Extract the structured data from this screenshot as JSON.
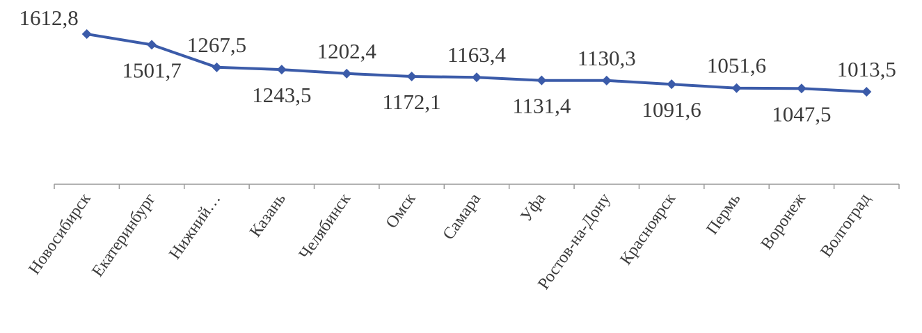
{
  "chart_data": {
    "type": "line",
    "title": "",
    "xlabel": "",
    "ylabel": "",
    "ylim": [
      950,
      1650
    ],
    "grid": false,
    "legend": "none",
    "categories": [
      "Новосибирск",
      "Екатеринбург",
      "Нижний…",
      "Казань",
      "Челябинск",
      "Омск",
      "Самара",
      "Уфа",
      "Ростов-на-Дону",
      "Красноярск",
      "Пермь",
      "Воронеж",
      "Волгоград"
    ],
    "series": [
      {
        "values": [
          1612.8,
          1501.7,
          1267.5,
          1243.5,
          1202.4,
          1172.1,
          1163.4,
          1131.4,
          1130.3,
          1091.6,
          1051.6,
          1047.5,
          1013.5
        ],
        "color": "#3b5ba9"
      }
    ],
    "data_labels": [
      "1612,8",
      "1501,7",
      "1267,5",
      "1243,5",
      "1202,4",
      "1172,1",
      "1163,4",
      "1131,4",
      "1130,3",
      "1091,6",
      "1051,6",
      "1047,5",
      "1013,5"
    ],
    "label_positions": [
      "left",
      "below",
      "above",
      "below",
      "above",
      "below",
      "above",
      "below",
      "above",
      "below",
      "above",
      "below",
      "above"
    ],
    "highlight_index": 5,
    "highlight_color": "#c0302c",
    "label_color": "#3a3a3a",
    "axis_color": "#999999"
  }
}
